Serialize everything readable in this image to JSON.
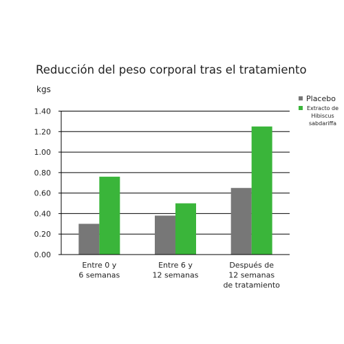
{
  "chart_data": {
    "type": "bar",
    "title": "Reducción del peso corporal tras el tratamiento",
    "ylabel": "kgs",
    "xlabel": "",
    "ylim": [
      0,
      1.4
    ],
    "yticks": [
      "0.00",
      "0.20",
      "0.40",
      "0.60",
      "0.80",
      "1.00",
      "1.20",
      "1.40"
    ],
    "grid": true,
    "legend_position": "right",
    "categories": [
      [
        "Entre 0 y",
        "6 semanas"
      ],
      [
        "Entre 6 y",
        "12 semanas"
      ],
      [
        "Después de",
        "12 semanas",
        "de tratamiento"
      ]
    ],
    "series": [
      {
        "name": "Placebo",
        "color": "#777777",
        "values": [
          0.3,
          0.38,
          0.65
        ]
      },
      {
        "name_lines": [
          "Extracto de",
          "Hibiscus",
          "sabdariffa"
        ],
        "color": "#3ab53a",
        "values": [
          0.76,
          0.5,
          1.25
        ]
      }
    ]
  }
}
